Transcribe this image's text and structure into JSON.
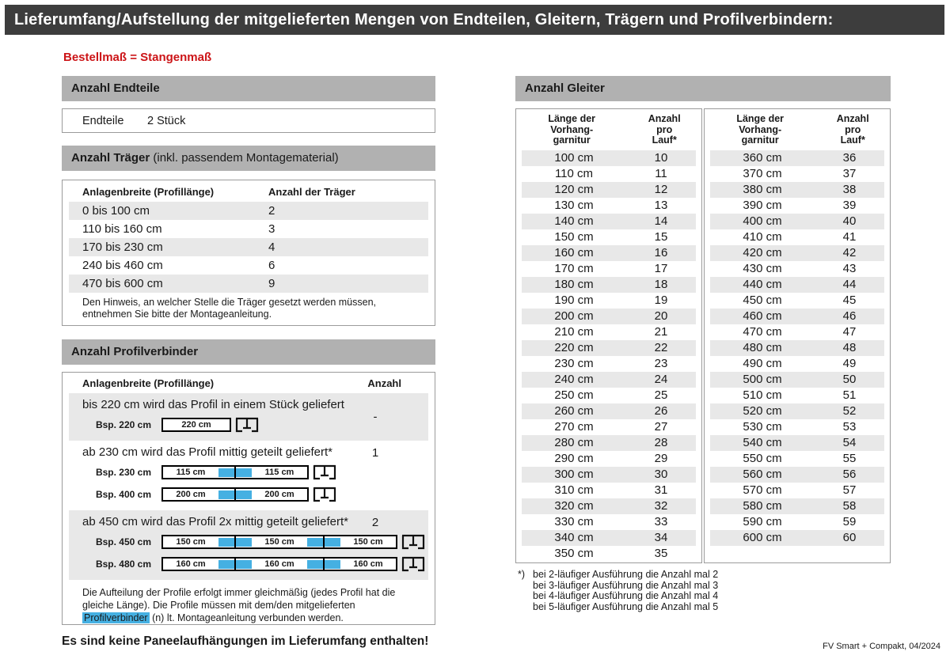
{
  "colors": {
    "titlebar_gray": "#3d3d3d",
    "section_gray": "#b1b1b1",
    "row_shade": "#e8e8e8",
    "connector_blue": "#45b0e2",
    "accent_red": "#cc1417"
  },
  "title": "Lieferumfang/Aufstellung der mitgelieferten Mengen von Endteilen, Gleitern, Trägern und Profilverbindern:",
  "subtitle": "Bestellmaß = Stangenmaß",
  "endteile": {
    "heading": "Anzahl Endteile",
    "label": "Endteile",
    "value": "2 Stück"
  },
  "traeger": {
    "heading_bold": "Anzahl Träger",
    "heading_rest": " (inkl. passendem Montagematerial)",
    "col1": "Anlagenbreite (Profillänge)",
    "col2": "Anzahl der Träger",
    "rows": [
      [
        "0 bis 100 cm",
        "2"
      ],
      [
        "110 bis 160 cm",
        "3"
      ],
      [
        "170 bis 230 cm",
        "4"
      ],
      [
        "240 bis 460 cm",
        "6"
      ],
      [
        "470 bis 600 cm",
        "9"
      ]
    ],
    "note": "Den Hinweis, an welcher Stelle die Träger gesetzt werden müssen, entnehmen Sie bitte der Montageanleitung."
  },
  "profilverbinder": {
    "heading": "Anzahl Profilverbinder",
    "col1": "Anlagenbreite (Profillänge)",
    "col2": "Anzahl",
    "cases": [
      {
        "text": "bis 220 cm wird das Profil in einem Stück geliefert",
        "anzahl": "-",
        "examples": [
          {
            "label": "Bsp. 220 cm",
            "segments": [
              "220 cm"
            ]
          }
        ]
      },
      {
        "text": "ab 230 cm wird das Profil mittig geteilt geliefert*",
        "anzahl": "1",
        "examples": [
          {
            "label": "Bsp. 230 cm",
            "segments": [
              "115 cm",
              "115 cm"
            ]
          },
          {
            "label": "Bsp. 400 cm",
            "segments": [
              "200 cm",
              "200 cm"
            ]
          }
        ]
      },
      {
        "text": "ab 450 cm wird das Profil 2x mittig geteilt geliefert*",
        "anzahl": "2",
        "examples": [
          {
            "label": "Bsp. 450 cm",
            "segments": [
              "150 cm",
              "150 cm",
              "150 cm"
            ]
          },
          {
            "label": "Bsp. 480 cm",
            "segments": [
              "160 cm",
              "160 cm",
              "160 cm"
            ]
          }
        ]
      }
    ],
    "note_part1": "Die Aufteilung der Profile erfolgt immer gleichmäßig (jedes Profil hat die gleiche Länge). Die Profile müssen mit dem/den mitgelieferten ",
    "note_highlight": "Profilverbinder",
    "note_part2": " (n) lt. Montageanleitung verbunden werden."
  },
  "no_panel_note": "Es sind keine Paneelaufhängungen im Lieferumfang enthalten!",
  "gleiter": {
    "heading": "Anzahl Gleiter",
    "col1": "Länge der\nVorhang-\ngarnitur",
    "col2": "Anzahl\npro\nLauf*",
    "left_rows": [
      [
        "100 cm",
        "10"
      ],
      [
        "110 cm",
        "11"
      ],
      [
        "120 cm",
        "12"
      ],
      [
        "130 cm",
        "13"
      ],
      [
        "140 cm",
        "14"
      ],
      [
        "150 cm",
        "15"
      ],
      [
        "160 cm",
        "16"
      ],
      [
        "170 cm",
        "17"
      ],
      [
        "180 cm",
        "18"
      ],
      [
        "190 cm",
        "19"
      ],
      [
        "200 cm",
        "20"
      ],
      [
        "210 cm",
        "21"
      ],
      [
        "220 cm",
        "22"
      ],
      [
        "230 cm",
        "23"
      ],
      [
        "240 cm",
        "24"
      ],
      [
        "250 cm",
        "25"
      ],
      [
        "260 cm",
        "26"
      ],
      [
        "270 cm",
        "27"
      ],
      [
        "280 cm",
        "28"
      ],
      [
        "290 cm",
        "29"
      ],
      [
        "300 cm",
        "30"
      ],
      [
        "310 cm",
        "31"
      ],
      [
        "320 cm",
        "32"
      ],
      [
        "330 cm",
        "33"
      ],
      [
        "340 cm",
        "34"
      ],
      [
        "350 cm",
        "35"
      ]
    ],
    "right_rows": [
      [
        "360 cm",
        "36"
      ],
      [
        "370 cm",
        "37"
      ],
      [
        "380 cm",
        "38"
      ],
      [
        "390 cm",
        "39"
      ],
      [
        "400 cm",
        "40"
      ],
      [
        "410 cm",
        "41"
      ],
      [
        "420 cm",
        "42"
      ],
      [
        "430 cm",
        "43"
      ],
      [
        "440 cm",
        "44"
      ],
      [
        "450 cm",
        "45"
      ],
      [
        "460 cm",
        "46"
      ],
      [
        "470 cm",
        "47"
      ],
      [
        "480 cm",
        "48"
      ],
      [
        "490 cm",
        "49"
      ],
      [
        "500 cm",
        "50"
      ],
      [
        "510 cm",
        "51"
      ],
      [
        "520 cm",
        "52"
      ],
      [
        "530 cm",
        "53"
      ],
      [
        "540 cm",
        "54"
      ],
      [
        "550 cm",
        "55"
      ],
      [
        "560 cm",
        "56"
      ],
      [
        "570 cm",
        "57"
      ],
      [
        "580 cm",
        "58"
      ],
      [
        "590 cm",
        "59"
      ],
      [
        "600 cm",
        "60"
      ]
    ]
  },
  "footnotes": {
    "marker": "*)",
    "lines": [
      "bei 2-läufiger Ausführung die Anzahl mal 2",
      "bei 3-läufiger Ausführung die Anzahl mal 3",
      "bei 4-läufiger Ausführung die Anzahl mal 4",
      "bei 5-läufiger Ausführung die Anzahl mal 5"
    ]
  },
  "footer": "FV Smart + Compakt, 04/2024"
}
